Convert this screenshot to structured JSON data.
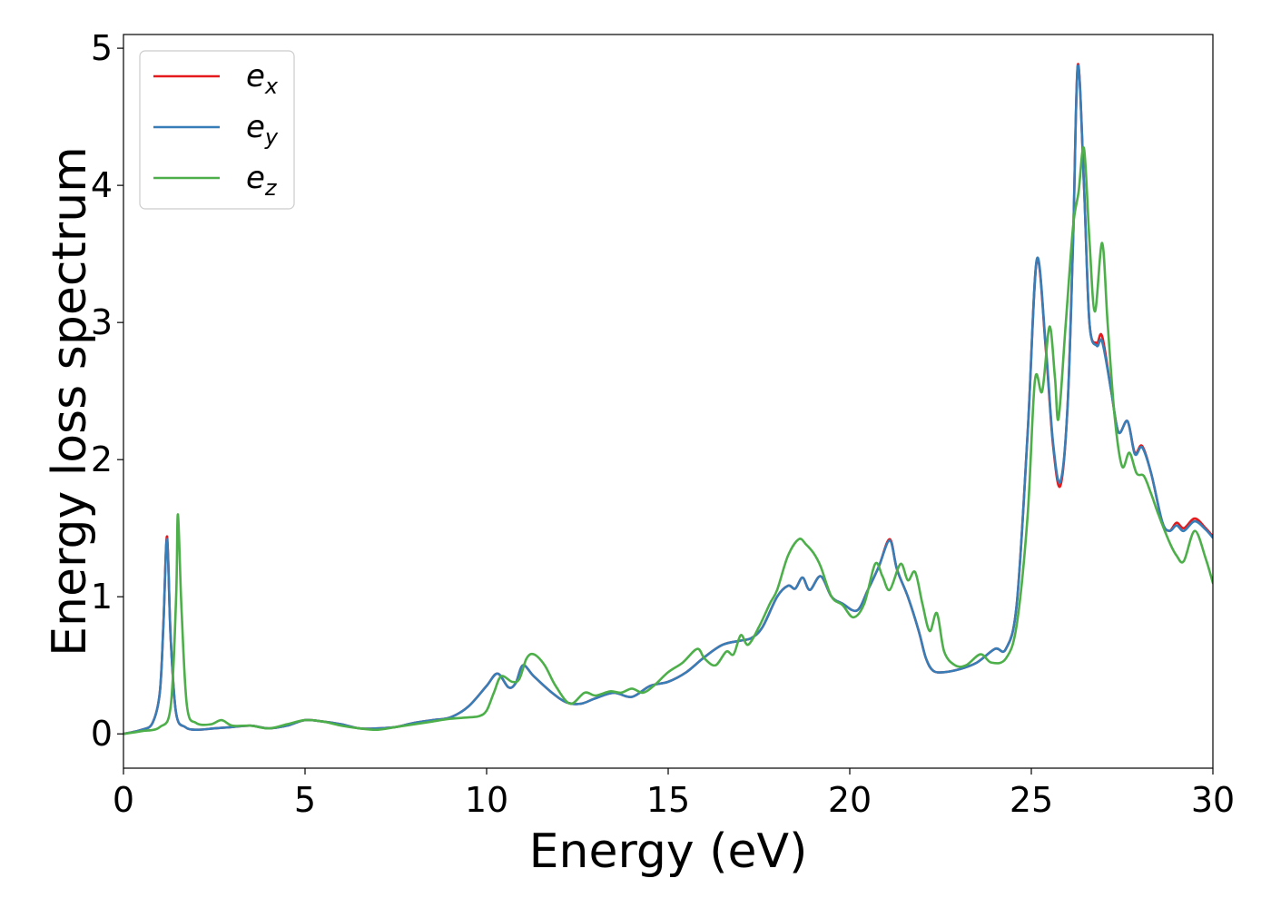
{
  "chart_data": {
    "type": "line",
    "title": "",
    "xlabel": "Energy (eV)",
    "ylabel": "Energy loss spectrum",
    "xlim": [
      0,
      30
    ],
    "ylim": [
      -0.25,
      5.1
    ],
    "xticks": [
      "0",
      "5",
      "10",
      "15",
      "20",
      "25",
      "30"
    ],
    "yticks": [
      "0",
      "1",
      "2",
      "3",
      "4",
      "5"
    ],
    "grid": false,
    "legend_position": "top-left",
    "series": [
      {
        "name": "e_x",
        "name_base": "e",
        "name_sub": "x",
        "color": "#e41a1c",
        "points": [
          [
            0,
            0
          ],
          [
            0.5,
            0.03
          ],
          [
            0.8,
            0.08
          ],
          [
            1.0,
            0.3
          ],
          [
            1.1,
            0.8
          ],
          [
            1.2,
            1.44
          ],
          [
            1.3,
            0.7
          ],
          [
            1.45,
            0.15
          ],
          [
            1.7,
            0.05
          ],
          [
            2.0,
            0.03
          ],
          [
            2.5,
            0.04
          ],
          [
            3.0,
            0.05
          ],
          [
            3.5,
            0.06
          ],
          [
            4.0,
            0.04
          ],
          [
            4.5,
            0.06
          ],
          [
            5.0,
            0.1
          ],
          [
            5.5,
            0.09
          ],
          [
            6.0,
            0.07
          ],
          [
            6.5,
            0.04
          ],
          [
            7.0,
            0.04
          ],
          [
            7.5,
            0.05
          ],
          [
            8.0,
            0.08
          ],
          [
            8.5,
            0.1
          ],
          [
            9.0,
            0.12
          ],
          [
            9.5,
            0.2
          ],
          [
            10.0,
            0.35
          ],
          [
            10.3,
            0.44
          ],
          [
            10.6,
            0.34
          ],
          [
            10.8,
            0.37
          ],
          [
            11.0,
            0.5
          ],
          [
            11.3,
            0.42
          ],
          [
            11.8,
            0.3
          ],
          [
            12.2,
            0.23
          ],
          [
            12.6,
            0.22
          ],
          [
            13.0,
            0.26
          ],
          [
            13.5,
            0.3
          ],
          [
            14.0,
            0.27
          ],
          [
            14.5,
            0.35
          ],
          [
            15.0,
            0.38
          ],
          [
            15.5,
            0.45
          ],
          [
            16.0,
            0.56
          ],
          [
            16.5,
            0.65
          ],
          [
            17.0,
            0.68
          ],
          [
            17.3,
            0.7
          ],
          [
            17.6,
            0.78
          ],
          [
            18.0,
            1.0
          ],
          [
            18.3,
            1.08
          ],
          [
            18.5,
            1.06
          ],
          [
            18.7,
            1.14
          ],
          [
            18.9,
            1.05
          ],
          [
            19.2,
            1.15
          ],
          [
            19.5,
            1.0
          ],
          [
            19.8,
            0.95
          ],
          [
            20.2,
            0.9
          ],
          [
            20.5,
            1.05
          ],
          [
            20.8,
            1.22
          ],
          [
            21.1,
            1.42
          ],
          [
            21.3,
            1.2
          ],
          [
            21.6,
            1.0
          ],
          [
            21.9,
            0.75
          ],
          [
            22.1,
            0.55
          ],
          [
            22.3,
            0.46
          ],
          [
            22.6,
            0.45
          ],
          [
            23.0,
            0.47
          ],
          [
            23.5,
            0.52
          ],
          [
            24.0,
            0.62
          ],
          [
            24.3,
            0.62
          ],
          [
            24.6,
            0.95
          ],
          [
            24.9,
            2.2
          ],
          [
            25.15,
            3.45
          ],
          [
            25.4,
            2.8
          ],
          [
            25.6,
            2.1
          ],
          [
            25.8,
            1.81
          ],
          [
            26.0,
            2.4
          ],
          [
            26.15,
            3.6
          ],
          [
            26.28,
            4.88
          ],
          [
            26.45,
            4.0
          ],
          [
            26.6,
            3.0
          ],
          [
            26.8,
            2.85
          ],
          [
            26.95,
            2.9
          ],
          [
            27.2,
            2.5
          ],
          [
            27.4,
            2.2
          ],
          [
            27.65,
            2.28
          ],
          [
            27.85,
            2.05
          ],
          [
            28.05,
            2.1
          ],
          [
            28.3,
            1.9
          ],
          [
            28.6,
            1.55
          ],
          [
            28.8,
            1.48
          ],
          [
            29.0,
            1.54
          ],
          [
            29.2,
            1.5
          ],
          [
            29.5,
            1.57
          ],
          [
            29.8,
            1.5
          ],
          [
            30.0,
            1.44
          ]
        ]
      },
      {
        "name": "e_y",
        "name_base": "e",
        "name_sub": "y",
        "color": "#377eb8",
        "points": [
          [
            0,
            0
          ],
          [
            0.5,
            0.03
          ],
          [
            0.8,
            0.08
          ],
          [
            1.0,
            0.3
          ],
          [
            1.1,
            0.8
          ],
          [
            1.2,
            1.42
          ],
          [
            1.3,
            0.7
          ],
          [
            1.45,
            0.15
          ],
          [
            1.7,
            0.05
          ],
          [
            2.0,
            0.03
          ],
          [
            2.5,
            0.04
          ],
          [
            3.0,
            0.05
          ],
          [
            3.5,
            0.06
          ],
          [
            4.0,
            0.04
          ],
          [
            4.5,
            0.06
          ],
          [
            5.0,
            0.1
          ],
          [
            5.5,
            0.09
          ],
          [
            6.0,
            0.07
          ],
          [
            6.5,
            0.04
          ],
          [
            7.0,
            0.04
          ],
          [
            7.5,
            0.05
          ],
          [
            8.0,
            0.08
          ],
          [
            8.5,
            0.1
          ],
          [
            9.0,
            0.12
          ],
          [
            9.5,
            0.2
          ],
          [
            10.0,
            0.35
          ],
          [
            10.3,
            0.44
          ],
          [
            10.6,
            0.34
          ],
          [
            10.8,
            0.37
          ],
          [
            11.0,
            0.5
          ],
          [
            11.3,
            0.42
          ],
          [
            11.8,
            0.3
          ],
          [
            12.2,
            0.23
          ],
          [
            12.6,
            0.22
          ],
          [
            13.0,
            0.26
          ],
          [
            13.5,
            0.3
          ],
          [
            14.0,
            0.27
          ],
          [
            14.5,
            0.35
          ],
          [
            15.0,
            0.38
          ],
          [
            15.5,
            0.45
          ],
          [
            16.0,
            0.56
          ],
          [
            16.5,
            0.65
          ],
          [
            17.0,
            0.68
          ],
          [
            17.3,
            0.7
          ],
          [
            17.6,
            0.78
          ],
          [
            18.0,
            1.0
          ],
          [
            18.3,
            1.08
          ],
          [
            18.5,
            1.06
          ],
          [
            18.7,
            1.14
          ],
          [
            18.9,
            1.05
          ],
          [
            19.2,
            1.15
          ],
          [
            19.5,
            1.0
          ],
          [
            19.8,
            0.95
          ],
          [
            20.2,
            0.9
          ],
          [
            20.5,
            1.05
          ],
          [
            20.8,
            1.22
          ],
          [
            21.1,
            1.41
          ],
          [
            21.3,
            1.2
          ],
          [
            21.6,
            1.0
          ],
          [
            21.9,
            0.75
          ],
          [
            22.1,
            0.55
          ],
          [
            22.3,
            0.46
          ],
          [
            22.6,
            0.45
          ],
          [
            23.0,
            0.47
          ],
          [
            23.5,
            0.52
          ],
          [
            24.0,
            0.62
          ],
          [
            24.3,
            0.62
          ],
          [
            24.6,
            0.95
          ],
          [
            24.9,
            2.2
          ],
          [
            25.15,
            3.46
          ],
          [
            25.4,
            2.82
          ],
          [
            25.6,
            2.12
          ],
          [
            25.8,
            1.84
          ],
          [
            26.0,
            2.4
          ],
          [
            26.15,
            3.6
          ],
          [
            26.28,
            4.87
          ],
          [
            26.45,
            4.0
          ],
          [
            26.6,
            3.0
          ],
          [
            26.8,
            2.83
          ],
          [
            26.95,
            2.86
          ],
          [
            27.2,
            2.5
          ],
          [
            27.4,
            2.2
          ],
          [
            27.65,
            2.28
          ],
          [
            27.85,
            2.04
          ],
          [
            28.05,
            2.09
          ],
          [
            28.3,
            1.9
          ],
          [
            28.6,
            1.55
          ],
          [
            28.8,
            1.48
          ],
          [
            29.0,
            1.52
          ],
          [
            29.2,
            1.48
          ],
          [
            29.5,
            1.55
          ],
          [
            29.8,
            1.49
          ],
          [
            30.0,
            1.43
          ]
        ]
      },
      {
        "name": "e_z",
        "name_base": "e",
        "name_sub": "z",
        "color": "#4daf4a",
        "points": [
          [
            0,
            0
          ],
          [
            0.5,
            0.02
          ],
          [
            1.0,
            0.05
          ],
          [
            1.3,
            0.2
          ],
          [
            1.45,
            1.0
          ],
          [
            1.5,
            1.6
          ],
          [
            1.6,
            0.9
          ],
          [
            1.75,
            0.2
          ],
          [
            2.0,
            0.08
          ],
          [
            2.4,
            0.07
          ],
          [
            2.7,
            0.1
          ],
          [
            3.0,
            0.06
          ],
          [
            3.5,
            0.06
          ],
          [
            4.0,
            0.04
          ],
          [
            4.5,
            0.07
          ],
          [
            5.0,
            0.1
          ],
          [
            5.5,
            0.09
          ],
          [
            6.0,
            0.06
          ],
          [
            6.5,
            0.04
          ],
          [
            7.0,
            0.03
          ],
          [
            7.5,
            0.05
          ],
          [
            8.0,
            0.07
          ],
          [
            8.5,
            0.09
          ],
          [
            9.0,
            0.11
          ],
          [
            9.5,
            0.12
          ],
          [
            9.8,
            0.13
          ],
          [
            10.0,
            0.17
          ],
          [
            10.2,
            0.3
          ],
          [
            10.4,
            0.42
          ],
          [
            10.7,
            0.38
          ],
          [
            10.9,
            0.4
          ],
          [
            11.1,
            0.55
          ],
          [
            11.3,
            0.58
          ],
          [
            11.6,
            0.5
          ],
          [
            11.9,
            0.35
          ],
          [
            12.3,
            0.22
          ],
          [
            12.7,
            0.3
          ],
          [
            13.0,
            0.28
          ],
          [
            13.4,
            0.31
          ],
          [
            13.7,
            0.3
          ],
          [
            14.0,
            0.33
          ],
          [
            14.3,
            0.3
          ],
          [
            14.6,
            0.35
          ],
          [
            15.0,
            0.45
          ],
          [
            15.4,
            0.52
          ],
          [
            15.8,
            0.62
          ],
          [
            16.0,
            0.55
          ],
          [
            16.3,
            0.5
          ],
          [
            16.6,
            0.6
          ],
          [
            16.8,
            0.58
          ],
          [
            17.0,
            0.72
          ],
          [
            17.2,
            0.65
          ],
          [
            17.5,
            0.78
          ],
          [
            17.8,
            0.95
          ],
          [
            18.0,
            1.05
          ],
          [
            18.3,
            1.3
          ],
          [
            18.6,
            1.42
          ],
          [
            18.8,
            1.38
          ],
          [
            19.0,
            1.32
          ],
          [
            19.2,
            1.22
          ],
          [
            19.5,
            1.0
          ],
          [
            19.8,
            0.94
          ],
          [
            20.1,
            0.85
          ],
          [
            20.4,
            0.95
          ],
          [
            20.7,
            1.24
          ],
          [
            20.9,
            1.15
          ],
          [
            21.1,
            1.05
          ],
          [
            21.4,
            1.24
          ],
          [
            21.6,
            1.12
          ],
          [
            21.8,
            1.18
          ],
          [
            22.0,
            0.95
          ],
          [
            22.2,
            0.75
          ],
          [
            22.4,
            0.88
          ],
          [
            22.6,
            0.6
          ],
          [
            22.9,
            0.5
          ],
          [
            23.2,
            0.5
          ],
          [
            23.6,
            0.58
          ],
          [
            23.9,
            0.52
          ],
          [
            24.3,
            0.55
          ],
          [
            24.6,
            0.8
          ],
          [
            24.9,
            1.6
          ],
          [
            25.1,
            2.58
          ],
          [
            25.3,
            2.5
          ],
          [
            25.5,
            2.97
          ],
          [
            25.65,
            2.6
          ],
          [
            25.75,
            2.3
          ],
          [
            25.95,
            3.0
          ],
          [
            26.15,
            3.7
          ],
          [
            26.3,
            3.95
          ],
          [
            26.45,
            4.27
          ],
          [
            26.6,
            3.6
          ],
          [
            26.75,
            3.08
          ],
          [
            26.95,
            3.58
          ],
          [
            27.1,
            3.0
          ],
          [
            27.3,
            2.3
          ],
          [
            27.5,
            1.95
          ],
          [
            27.7,
            2.05
          ],
          [
            27.9,
            1.9
          ],
          [
            28.1,
            1.88
          ],
          [
            28.3,
            1.75
          ],
          [
            28.5,
            1.6
          ],
          [
            28.8,
            1.4
          ],
          [
            29.0,
            1.3
          ],
          [
            29.2,
            1.26
          ],
          [
            29.5,
            1.48
          ],
          [
            29.8,
            1.28
          ],
          [
            30.0,
            1.1
          ]
        ]
      }
    ]
  }
}
